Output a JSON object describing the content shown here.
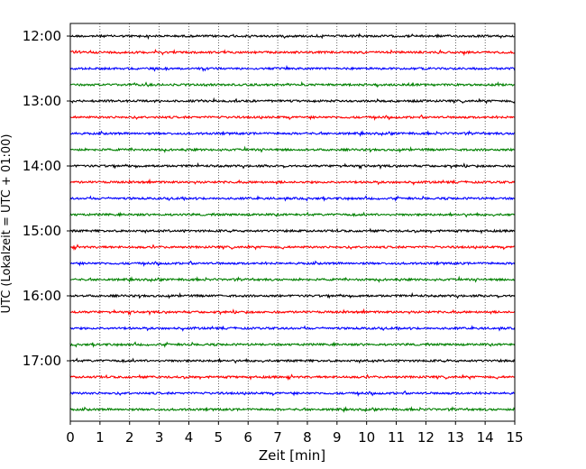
{
  "chart_data": {
    "type": "line",
    "title": "",
    "xlabel": "Zeit  [min]",
    "ylabel": "UTC (Lokalzeit = UTC + 01:00)",
    "xlim": [
      0,
      15
    ],
    "xticks": [
      0,
      1,
      2,
      3,
      4,
      5,
      6,
      7,
      8,
      9,
      10,
      11,
      12,
      13,
      14,
      15
    ],
    "yticks": [
      "12:00",
      "13:00",
      "14:00",
      "15:00",
      "16:00",
      "17:00"
    ],
    "grid": "vertical-dotted",
    "trace_start": "12:00",
    "trace_end": "17:45",
    "trace_interval_min": 15,
    "trace_colors": [
      "#000000",
      "#ff0000",
      "#0000ff",
      "#008000"
    ]
  }
}
